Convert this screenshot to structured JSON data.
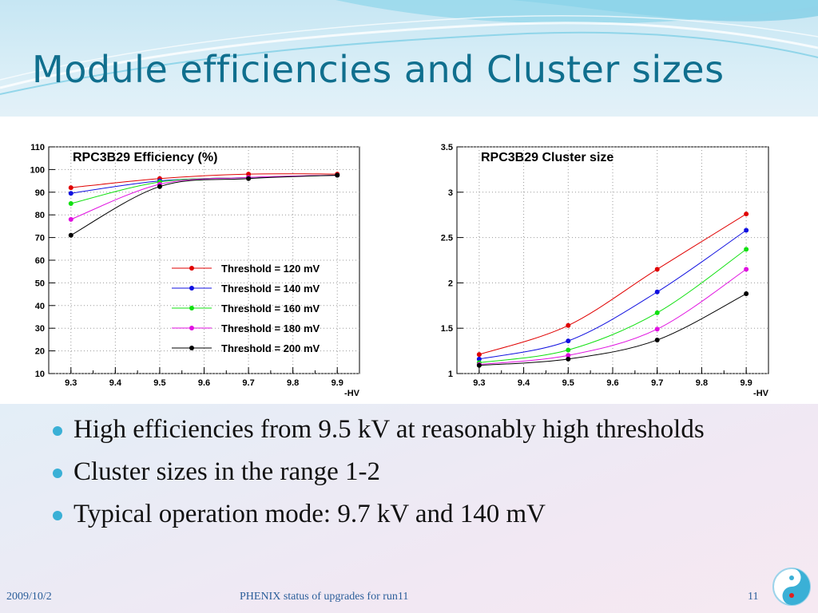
{
  "slide": {
    "title": "Module efficiencies and Cluster sizes",
    "bullets": [
      "High efficiencies from 9.5 kV at reasonably high thresholds",
      "Cluster sizes in the range 1-2",
      "Typical operation mode: 9.7 kV and 140 mV"
    ],
    "footer": {
      "date": "2009/10/2",
      "center": "PHENIX status of upgrades for run11",
      "page": "11"
    },
    "colors": {
      "title": "#106f8e",
      "bullet": "#3ab0d6",
      "footer": "#2b5e9a"
    }
  },
  "chart_data": [
    {
      "type": "line",
      "title": "RPC3B29 Efficiency (%)",
      "xlabel": "-HV",
      "ylabel": "",
      "x": [
        9.3,
        9.5,
        9.7,
        9.9
      ],
      "xlim": [
        9.25,
        9.95
      ],
      "ylim": [
        10,
        110
      ],
      "xticks": [
        "9.3",
        "9.4",
        "9.5",
        "9.6",
        "9.7",
        "9.8",
        "9.9"
      ],
      "yticks": [
        "10",
        "20",
        "30",
        "40",
        "50",
        "60",
        "70",
        "80",
        "90",
        "100",
        "110"
      ],
      "grid": true,
      "legend_position": "bottom-right",
      "series": [
        {
          "name": "Threshold = 120 mV",
          "color": "#e00000",
          "values": [
            92,
            96,
            98,
            98
          ]
        },
        {
          "name": "Threshold = 140 mV",
          "color": "#1010e0",
          "values": [
            89.5,
            95,
            96.5,
            97.5
          ]
        },
        {
          "name": "Threshold = 160 mV",
          "color": "#10e010",
          "values": [
            85,
            94.5,
            96.5,
            97.5
          ]
        },
        {
          "name": "Threshold = 180 mV",
          "color": "#e010e0",
          "values": [
            78,
            93.5,
            96.5,
            97.5
          ]
        },
        {
          "name": "Threshold = 200 mV",
          "color": "#000000",
          "values": [
            71,
            92.5,
            96,
            97.5
          ]
        }
      ]
    },
    {
      "type": "line",
      "title": "RPC3B29 Cluster size",
      "xlabel": "-HV",
      "ylabel": "",
      "x": [
        9.3,
        9.5,
        9.7,
        9.9
      ],
      "xlim": [
        9.25,
        9.95
      ],
      "ylim": [
        1,
        3.5
      ],
      "xticks": [
        "9.3",
        "9.4",
        "9.5",
        "9.6",
        "9.7",
        "9.8",
        "9.9"
      ],
      "yticks": [
        "1",
        "1.5",
        "2",
        "2.5",
        "3",
        "3.5"
      ],
      "grid": true,
      "series": [
        {
          "name": "Threshold = 120 mV",
          "color": "#e00000",
          "values": [
            1.21,
            1.53,
            2.15,
            2.76
          ]
        },
        {
          "name": "Threshold = 140 mV",
          "color": "#1010e0",
          "values": [
            1.16,
            1.36,
            1.9,
            2.58
          ]
        },
        {
          "name": "Threshold = 160 mV",
          "color": "#10e010",
          "values": [
            1.12,
            1.26,
            1.67,
            2.37
          ]
        },
        {
          "name": "Threshold = 180 mV",
          "color": "#e010e0",
          "values": [
            1.1,
            1.2,
            1.49,
            2.15
          ]
        },
        {
          "name": "Threshold = 200 mV",
          "color": "#000000",
          "values": [
            1.09,
            1.16,
            1.37,
            1.88
          ]
        }
      ]
    }
  ]
}
